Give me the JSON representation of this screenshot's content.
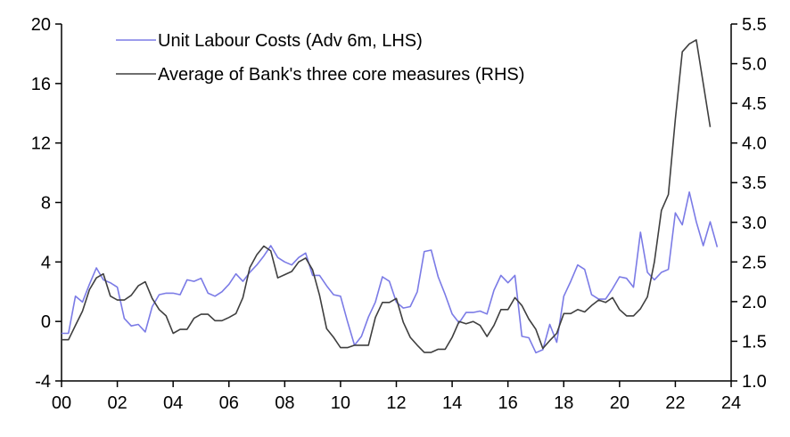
{
  "chart_data": {
    "type": "line",
    "title": "",
    "xlabel": "",
    "x_ticks": [
      "00",
      "02",
      "04",
      "06",
      "08",
      "10",
      "12",
      "14",
      "16",
      "18",
      "20",
      "22",
      "24"
    ],
    "x_range": [
      2000,
      2024
    ],
    "y_left": {
      "range": [
        -4,
        20
      ],
      "ticks": [
        "-4",
        "0",
        "4",
        "8",
        "12",
        "16",
        "20"
      ]
    },
    "y_right": {
      "range": [
        1.0,
        5.5
      ],
      "ticks": [
        "1.0",
        "1.5",
        "2.0",
        "2.5",
        "3.0",
        "3.5",
        "4.0",
        "4.5",
        "5.0",
        "5.5"
      ]
    },
    "grid": false,
    "legend_position": "top-left",
    "series": [
      {
        "name": "Unit Labour Costs (Adv 6m, LHS)",
        "axis": "left",
        "color": "#7b7be6",
        "x": [
          2000.0,
          2000.25,
          2000.5,
          2000.75,
          2001.0,
          2001.25,
          2001.5,
          2001.75,
          2002.0,
          2002.25,
          2002.5,
          2002.75,
          2003.0,
          2003.25,
          2003.5,
          2003.75,
          2004.0,
          2004.25,
          2004.5,
          2004.75,
          2005.0,
          2005.25,
          2005.5,
          2005.75,
          2006.0,
          2006.25,
          2006.5,
          2006.75,
          2007.0,
          2007.25,
          2007.5,
          2007.75,
          2008.0,
          2008.25,
          2008.5,
          2008.75,
          2009.0,
          2009.25,
          2009.5,
          2009.75,
          2010.0,
          2010.25,
          2010.5,
          2010.75,
          2011.0,
          2011.25,
          2011.5,
          2011.75,
          2012.0,
          2012.25,
          2012.5,
          2012.75,
          2013.0,
          2013.25,
          2013.5,
          2013.75,
          2014.0,
          2014.25,
          2014.5,
          2014.75,
          2015.0,
          2015.25,
          2015.5,
          2015.75,
          2016.0,
          2016.25,
          2016.5,
          2016.75,
          2017.0,
          2017.25,
          2017.5,
          2017.75,
          2018.0,
          2018.25,
          2018.5,
          2018.75,
          2019.0,
          2019.25,
          2019.5,
          2019.75,
          2020.0,
          2020.25,
          2020.5,
          2020.75,
          2021.0,
          2021.25,
          2021.5,
          2021.75,
          2022.0,
          2022.25,
          2022.5,
          2022.75,
          2023.0,
          2023.25,
          2023.5
        ],
        "values": [
          -0.8,
          -0.8,
          1.7,
          1.3,
          2.5,
          3.6,
          2.8,
          2.6,
          2.3,
          0.2,
          -0.3,
          -0.2,
          -0.7,
          1.0,
          1.8,
          1.9,
          1.9,
          1.8,
          2.8,
          2.7,
          2.9,
          1.9,
          1.7,
          2.0,
          2.5,
          3.2,
          2.7,
          3.3,
          3.8,
          4.4,
          5.1,
          4.3,
          4.0,
          3.8,
          4.3,
          4.6,
          3.1,
          3.1,
          2.4,
          1.8,
          1.7,
          0.0,
          -1.6,
          -1.0,
          0.3,
          1.3,
          3.0,
          2.7,
          1.3,
          0.9,
          1.0,
          2.0,
          4.7,
          4.8,
          3.0,
          1.8,
          0.5,
          -0.1,
          0.6,
          0.6,
          0.7,
          0.5,
          2.1,
          3.1,
          2.6,
          3.1,
          -1.0,
          -1.1,
          -2.1,
          -1.9,
          -0.2,
          -1.4,
          1.7,
          2.7,
          3.8,
          3.5,
          1.8,
          1.5,
          1.5,
          2.2,
          3.0,
          2.9,
          2.3,
          6.0,
          3.3,
          2.8,
          3.3,
          3.5,
          7.3,
          6.5,
          8.7,
          6.7,
          5.1,
          6.7,
          5.0
        ]
      },
      {
        "name": "Average of Bank's three core measures (RHS)",
        "axis": "right",
        "color": "#3f3f3f",
        "x": [
          2000.0,
          2000.25,
          2000.5,
          2000.75,
          2001.0,
          2001.25,
          2001.5,
          2001.75,
          2002.0,
          2002.25,
          2002.5,
          2002.75,
          2003.0,
          2003.25,
          2003.5,
          2003.75,
          2004.0,
          2004.25,
          2004.5,
          2004.75,
          2005.0,
          2005.25,
          2005.5,
          2005.75,
          2006.0,
          2006.25,
          2006.5,
          2006.75,
          2007.0,
          2007.25,
          2007.5,
          2007.75,
          2008.0,
          2008.25,
          2008.5,
          2008.75,
          2009.0,
          2009.25,
          2009.5,
          2009.75,
          2010.0,
          2010.25,
          2010.5,
          2010.75,
          2011.0,
          2011.25,
          2011.5,
          2011.75,
          2012.0,
          2012.25,
          2012.5,
          2012.75,
          2013.0,
          2013.25,
          2013.5,
          2013.75,
          2014.0,
          2014.25,
          2014.5,
          2014.75,
          2015.0,
          2015.25,
          2015.5,
          2015.75,
          2016.0,
          2016.25,
          2016.5,
          2016.75,
          2017.0,
          2017.25,
          2017.5,
          2017.75,
          2018.0,
          2018.25,
          2018.5,
          2018.75,
          2019.0,
          2019.25,
          2019.5,
          2019.75,
          2020.0,
          2020.25,
          2020.5,
          2020.75,
          2021.0,
          2021.25,
          2021.5,
          2021.75,
          2022.0,
          2022.25,
          2022.5,
          2022.75,
          2023.0,
          2023.25
        ],
        "values": [
          1.52,
          1.52,
          1.7,
          1.88,
          2.15,
          2.3,
          2.35,
          2.07,
          2.02,
          2.02,
          2.08,
          2.2,
          2.25,
          2.04,
          1.9,
          1.82,
          1.6,
          1.65,
          1.65,
          1.79,
          1.84,
          1.84,
          1.76,
          1.76,
          1.8,
          1.85,
          2.05,
          2.43,
          2.59,
          2.7,
          2.64,
          2.3,
          2.34,
          2.38,
          2.5,
          2.55,
          2.4,
          2.08,
          1.66,
          1.55,
          1.42,
          1.42,
          1.45,
          1.45,
          1.45,
          1.8,
          1.99,
          1.99,
          2.04,
          1.74,
          1.55,
          1.45,
          1.36,
          1.36,
          1.4,
          1.4,
          1.55,
          1.75,
          1.72,
          1.75,
          1.7,
          1.56,
          1.7,
          1.9,
          1.9,
          2.05,
          1.95,
          1.78,
          1.65,
          1.41,
          1.51,
          1.6,
          1.85,
          1.85,
          1.9,
          1.87,
          1.95,
          2.02,
          1.99,
          2.05,
          1.9,
          1.82,
          1.82,
          1.91,
          2.06,
          2.5,
          3.15,
          3.35,
          4.3,
          5.15,
          5.25,
          5.3,
          4.75,
          4.2
        ]
      }
    ]
  }
}
